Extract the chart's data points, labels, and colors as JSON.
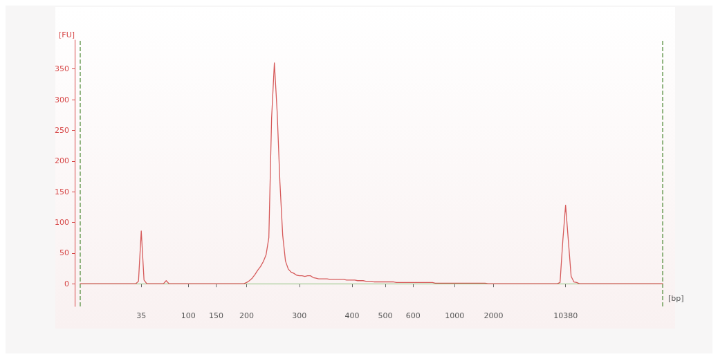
{
  "chart_data": {
    "type": "line",
    "xlabel": "[bp]",
    "ylabel": "[FU]",
    "categories": [
      null,
      null,
      null,
      null,
      null,
      null,
      null,
      null,
      null,
      null,
      null,
      null,
      null,
      null,
      null,
      null,
      null,
      null,
      null,
      null,
      null,
      null,
      "35",
      null,
      null,
      null,
      null,
      null,
      null,
      null,
      null,
      null,
      null,
      null,
      null,
      null,
      null,
      null,
      null,
      "100",
      null,
      null,
      null,
      null,
      null,
      null,
      null,
      null,
      null,
      "150",
      null,
      null,
      null,
      null,
      null,
      null,
      null,
      null,
      null,
      null,
      "200",
      null,
      null,
      null,
      null,
      null,
      null,
      null,
      null,
      null,
      null,
      null,
      null,
      null,
      null,
      null,
      null,
      null,
      null,
      "300",
      null,
      null,
      null,
      null,
      null,
      null,
      null,
      null,
      null,
      null,
      null,
      null,
      null,
      null,
      null,
      null,
      null,
      null,
      "400",
      null,
      null,
      null,
      null,
      null,
      null,
      null,
      null,
      null,
      null,
      null,
      "500",
      null,
      null,
      null,
      null,
      null,
      null,
      null,
      null,
      null,
      "600",
      null,
      null,
      null,
      null,
      null,
      null,
      null,
      null,
      null,
      null,
      null,
      null,
      null,
      null,
      "1000",
      null,
      null,
      null,
      null,
      null,
      null,
      null,
      null,
      null,
      null,
      null,
      null,
      null,
      "2000",
      null,
      null,
      null,
      null,
      null,
      null,
      null,
      null,
      null,
      null,
      null,
      null,
      null,
      null,
      null,
      null,
      null,
      null,
      null,
      null,
      null,
      null,
      null,
      null,
      null,
      "10380",
      null,
      null,
      null,
      null,
      null,
      null,
      null,
      null,
      null,
      null,
      null,
      null,
      null,
      null,
      null,
      null,
      null,
      null,
      null,
      null,
      null,
      null,
      null,
      null,
      null,
      null,
      null,
      null,
      null,
      null,
      null,
      null,
      null,
      null,
      null
    ],
    "series": [
      {
        "color": "#d65a5a",
        "values": [
          0,
          0,
          0,
          0,
          0,
          0,
          0,
          0,
          0,
          0,
          0,
          0,
          0,
          0,
          0,
          0,
          0,
          0,
          0,
          0,
          0,
          4,
          86,
          6,
          0,
          0,
          0,
          0,
          0,
          0,
          0,
          5,
          0,
          0,
          0,
          0,
          0,
          0,
          0,
          0,
          0,
          0,
          0,
          0,
          0,
          0,
          0,
          0,
          0,
          0,
          0,
          0,
          0,
          0,
          0,
          0,
          0,
          0,
          0,
          0,
          2,
          5,
          9,
          15,
          22,
          28,
          36,
          47,
          75,
          270,
          360,
          280,
          165,
          79,
          37,
          24,
          19,
          17,
          14,
          13,
          13,
          12,
          13,
          13,
          10,
          9,
          8,
          8,
          8,
          8,
          7,
          7,
          7,
          7,
          7,
          7,
          6,
          6,
          6,
          6,
          5,
          5,
          5,
          4,
          4,
          4,
          3,
          3,
          3,
          3,
          3,
          3,
          3,
          3,
          2,
          2,
          2,
          2,
          2,
          2,
          2,
          2,
          2,
          2,
          2,
          2,
          2,
          2,
          1,
          1,
          1,
          1,
          1,
          1,
          1,
          1,
          1,
          1,
          1,
          1,
          1,
          1,
          1,
          1,
          1,
          1,
          1,
          0,
          0,
          0,
          0,
          0,
          0,
          0,
          0,
          0,
          0,
          0,
          0,
          0,
          0,
          0,
          0,
          0,
          0,
          0,
          0,
          0,
          0,
          0,
          0,
          0,
          0,
          2,
          70,
          128,
          70,
          12,
          3,
          2,
          0,
          0,
          0,
          0,
          0,
          0,
          0,
          0,
          0,
          0,
          0,
          0,
          0,
          0,
          0,
          0,
          0,
          0,
          0,
          0,
          0,
          0,
          0,
          0,
          0,
          0,
          0,
          0,
          0,
          0,
          0
        ]
      }
    ],
    "ylim": [
      -37,
      397
    ],
    "yticks": [
      0,
      50,
      100,
      150,
      200,
      250,
      300,
      350
    ],
    "marker": "none",
    "line_style": "solid",
    "grid": false,
    "ref_lines": [
      {
        "axis": "y",
        "value": 0,
        "color": "#8cc07a",
        "line_style": "solid"
      }
    ]
  }
}
